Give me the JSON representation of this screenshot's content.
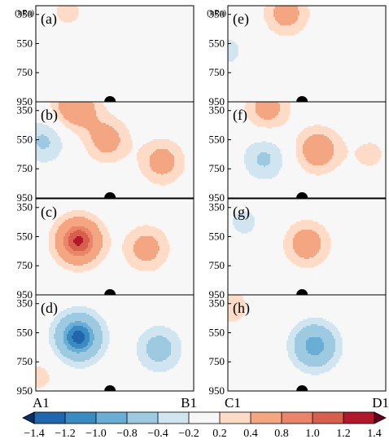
{
  "chart_data": {
    "type": "heatmap",
    "vertical_unit": "(hPa)",
    "pressure_ticks": [
      "350",
      "550",
      "750",
      "950"
    ],
    "columns": [
      {
        "start_label": "A1",
        "end_label": "B1"
      },
      {
        "start_label": "C1",
        "end_label": "D1"
      }
    ],
    "panels": [
      {
        "label": "(a)",
        "column": 0,
        "row": 0,
        "anomalies": [
          {
            "x": 0.2,
            "p": 330,
            "value": 0.25
          }
        ]
      },
      {
        "label": "(b)",
        "column": 0,
        "row": 1,
        "anomalies": [
          {
            "x": 0.25,
            "p": 320,
            "value": 0.75
          },
          {
            "x": 0.05,
            "p": 560,
            "value": -0.45
          },
          {
            "x": 0.45,
            "p": 550,
            "value": 0.55
          },
          {
            "x": 0.8,
            "p": 700,
            "value": 0.55
          }
        ]
      },
      {
        "label": "(c)",
        "column": 0,
        "row": 2,
        "anomalies": [
          {
            "x": 0.27,
            "p": 580,
            "value": 1.25
          },
          {
            "x": 0.7,
            "p": 630,
            "value": 0.55
          }
        ]
      },
      {
        "label": "(d)",
        "column": 0,
        "row": 3,
        "anomalies": [
          {
            "x": 0.27,
            "p": 580,
            "value": -1.3
          },
          {
            "x": 0.78,
            "p": 660,
            "value": -0.55
          },
          {
            "x": 0.02,
            "p": 850,
            "value": 0.25
          }
        ]
      },
      {
        "label": "(e)",
        "column": 1,
        "row": 0,
        "anomalies": [
          {
            "x": 0.37,
            "p": 340,
            "value": 0.55
          },
          {
            "x": 0.0,
            "p": 600,
            "value": -0.25
          }
        ]
      },
      {
        "label": "(f)",
        "column": 1,
        "row": 1,
        "anomalies": [
          {
            "x": 0.25,
            "p": 330,
            "value": 0.55
          },
          {
            "x": 0.23,
            "p": 680,
            "value": -0.45
          },
          {
            "x": 0.57,
            "p": 620,
            "value": 0.65
          },
          {
            "x": 0.9,
            "p": 650,
            "value": 0.25
          }
        ]
      },
      {
        "label": "(g)",
        "column": 1,
        "row": 2,
        "anomalies": [
          {
            "x": 0.5,
            "p": 600,
            "value": 0.6
          },
          {
            "x": 0.1,
            "p": 450,
            "value": -0.25
          }
        ]
      },
      {
        "label": "(h)",
        "column": 1,
        "row": 3,
        "anomalies": [
          {
            "x": 0.55,
            "p": 640,
            "value": -0.95
          },
          {
            "x": 0.02,
            "p": 370,
            "value": 0.3
          }
        ]
      }
    ],
    "colorbar": {
      "ticks": [
        "−1.4",
        "−1.2",
        "−1.0",
        "−0.8",
        "−0.4",
        "−0.2",
        "0.2",
        "0.4",
        "0.8",
        "1.0",
        "1.2",
        "1.4"
      ],
      "levels": [
        -1.4,
        -1.2,
        -1.0,
        -0.8,
        -0.4,
        -0.2,
        0.2,
        0.4,
        0.8,
        1.0,
        1.2,
        1.4
      ],
      "colors": [
        "#053061",
        "#2166ac",
        "#3a8bc2",
        "#6aaed6",
        "#9ecae1",
        "#d1e5f0",
        "#f7f7f7",
        "#fddbc7",
        "#f4a582",
        "#e8856a",
        "#d6604d",
        "#b2182b",
        "#67001f"
      ]
    }
  }
}
